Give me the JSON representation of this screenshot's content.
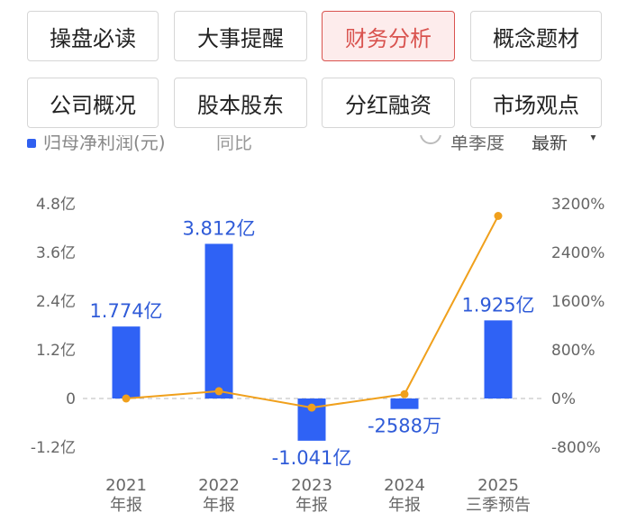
{
  "tabs_row1": [
    "操盘必读",
    "大事提醒",
    "财务分析",
    "概念题材"
  ],
  "tabs_row2": [
    "公司概况",
    "股本股东",
    "分红融资",
    "市场观点"
  ],
  "active_tab": "财务分析",
  "legend": {
    "series1": "归母净利润(元)",
    "series2": "同比",
    "period": "单季度",
    "latest": "最新",
    "caret": "▾"
  },
  "colors": {
    "bar": "#2f62f5",
    "line": "#f0a01c",
    "active_tab": "#d9534f"
  },
  "chart_data": {
    "type": "bar",
    "categories": [
      "2021\n年报",
      "2022\n年报",
      "2023\n年报",
      "2024\n年报",
      "2025\n三季预告"
    ],
    "series": [
      {
        "name": "归母净利润(元)",
        "type": "bar",
        "axis": "left",
        "values": [
          1.774,
          3.812,
          -1.041,
          -0.2588,
          1.925
        ],
        "labels": [
          "1.774亿",
          "3.812亿",
          "-1.041亿",
          "-2588万",
          "1.925亿"
        ]
      },
      {
        "name": "同比",
        "type": "line",
        "axis": "right",
        "values": [
          0,
          120,
          -150,
          70,
          3000
        ]
      }
    ],
    "y_left": {
      "ticks": [
        -1.2,
        0,
        1.2,
        2.4,
        3.6,
        4.8
      ],
      "tick_labels": [
        "-1.2亿",
        "0",
        "1.2亿",
        "2.4亿",
        "3.6亿",
        "4.8亿"
      ],
      "range": [
        -1.2,
        4.8
      ]
    },
    "y_right": {
      "ticks": [
        -800,
        0,
        800,
        1600,
        2400,
        3200
      ],
      "tick_labels": [
        "-800%",
        "0%",
        "800%",
        "1600%",
        "2400%",
        "3200%"
      ],
      "range": [
        -800,
        3200
      ]
    },
    "zero_line": "dashed"
  }
}
